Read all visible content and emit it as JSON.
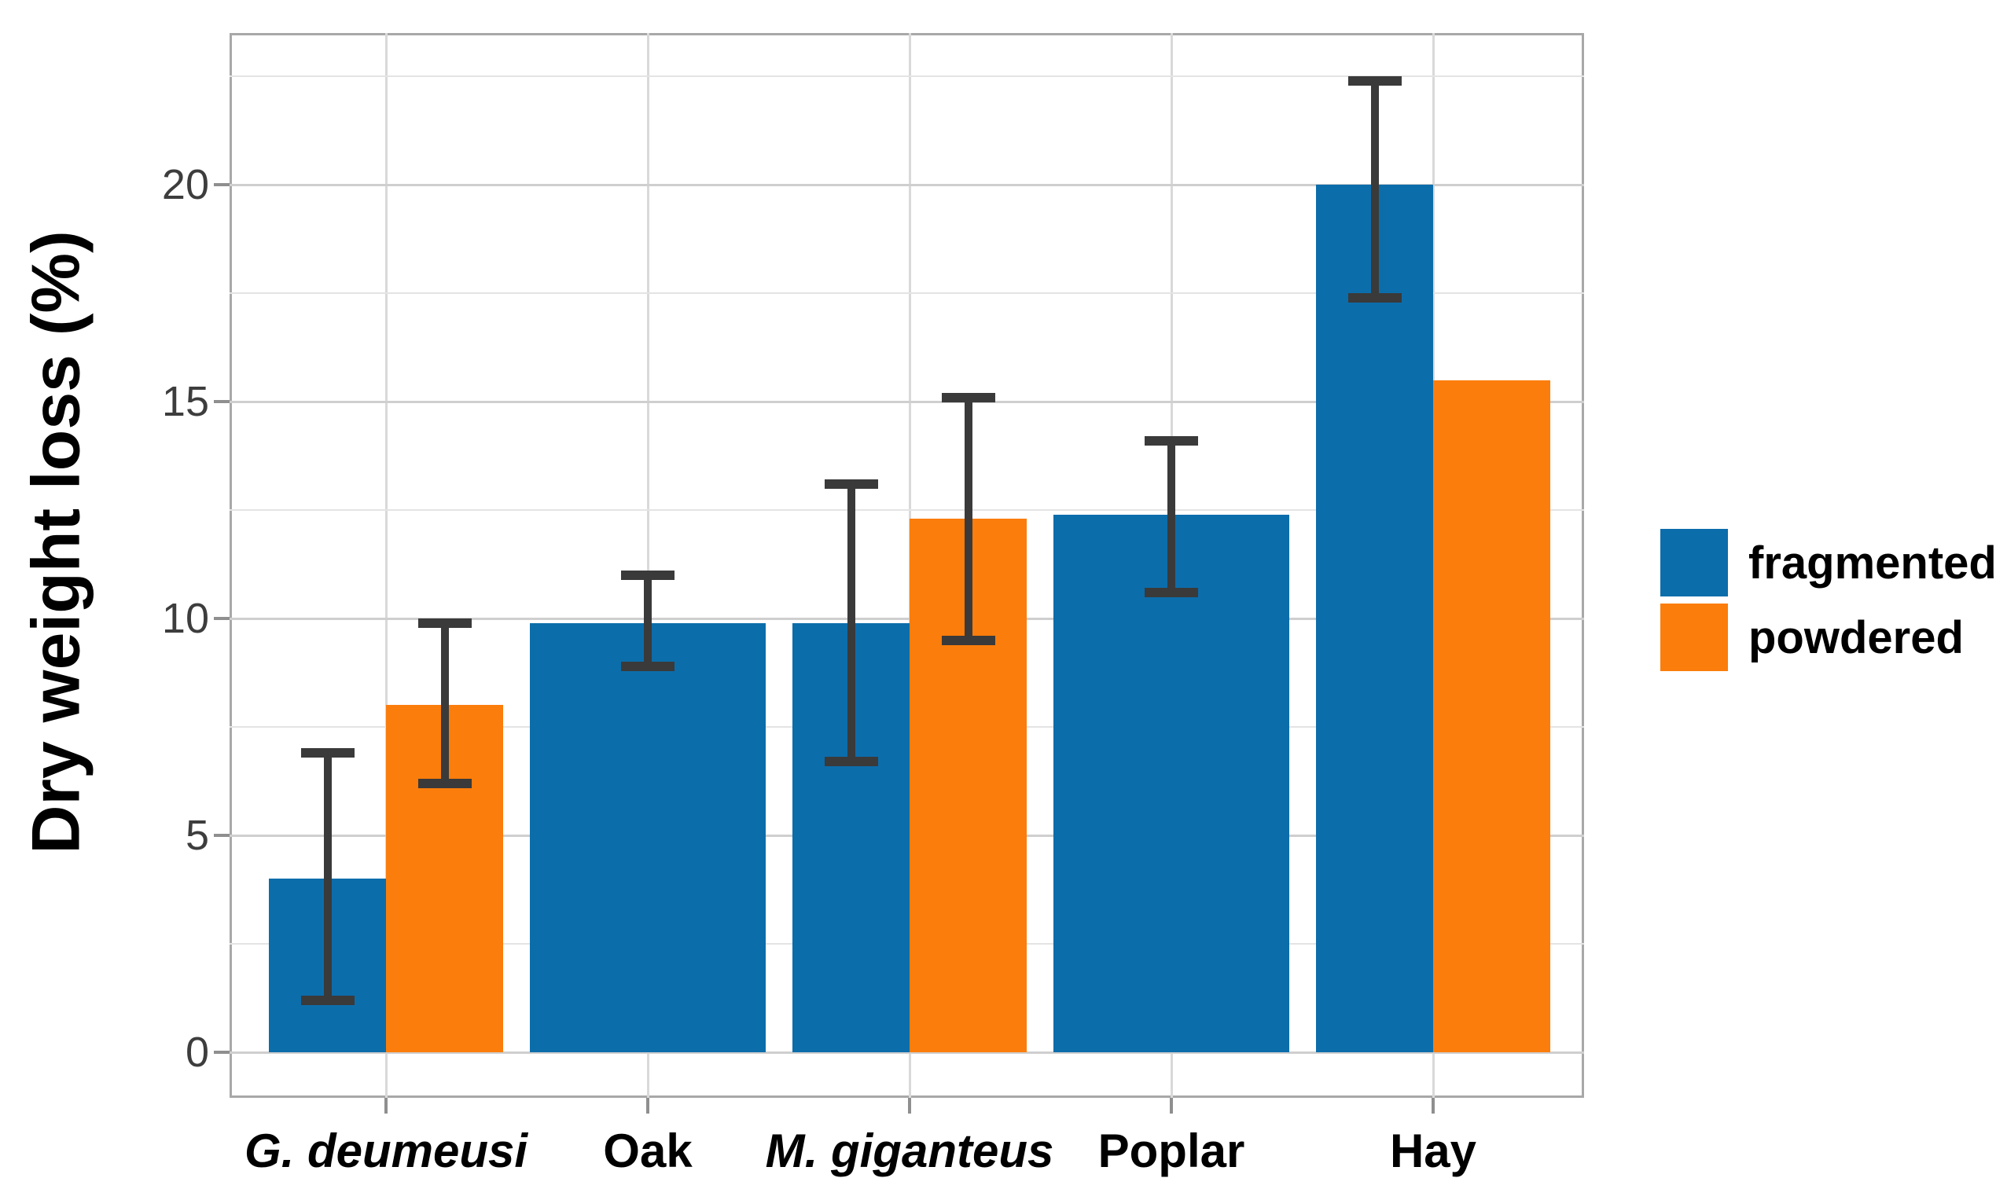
{
  "chart_data": {
    "type": "bar",
    "title": "",
    "xlabel": "",
    "ylabel": "Dry weight loss (%)",
    "categories": [
      "G. deumeusi",
      "Oak",
      "M. giganteus",
      "Poplar",
      "Hay"
    ],
    "categories_italic": [
      true,
      false,
      true,
      false,
      false
    ],
    "series": [
      {
        "name": "fragmented",
        "color": "#0c6dab",
        "values": [
          4.0,
          9.9,
          9.9,
          12.4,
          20.0
        ],
        "error_low": [
          1.2,
          8.9,
          6.7,
          10.6,
          17.4
        ],
        "error_high": [
          6.9,
          11.0,
          13.1,
          14.1,
          22.4
        ]
      },
      {
        "name": "powdered",
        "color": "#fb7d0b",
        "values": [
          8.0,
          null,
          12.3,
          null,
          15.5
        ],
        "error_low": [
          6.2,
          null,
          9.5,
          null,
          null
        ],
        "error_high": [
          9.9,
          null,
          15.1,
          null,
          null
        ]
      }
    ],
    "ylim": [
      -1.05,
      23.5
    ],
    "yticks": [
      0,
      5,
      10,
      15,
      20
    ],
    "yticks_minor": [
      2.5,
      7.5,
      12.5,
      17.5,
      22.5
    ],
    "grid": true,
    "legend_position": "right",
    "errorbar_color": "#3a3a3a"
  },
  "legend": {
    "items": [
      {
        "label": "fragmented"
      },
      {
        "label": "powdered"
      }
    ]
  }
}
